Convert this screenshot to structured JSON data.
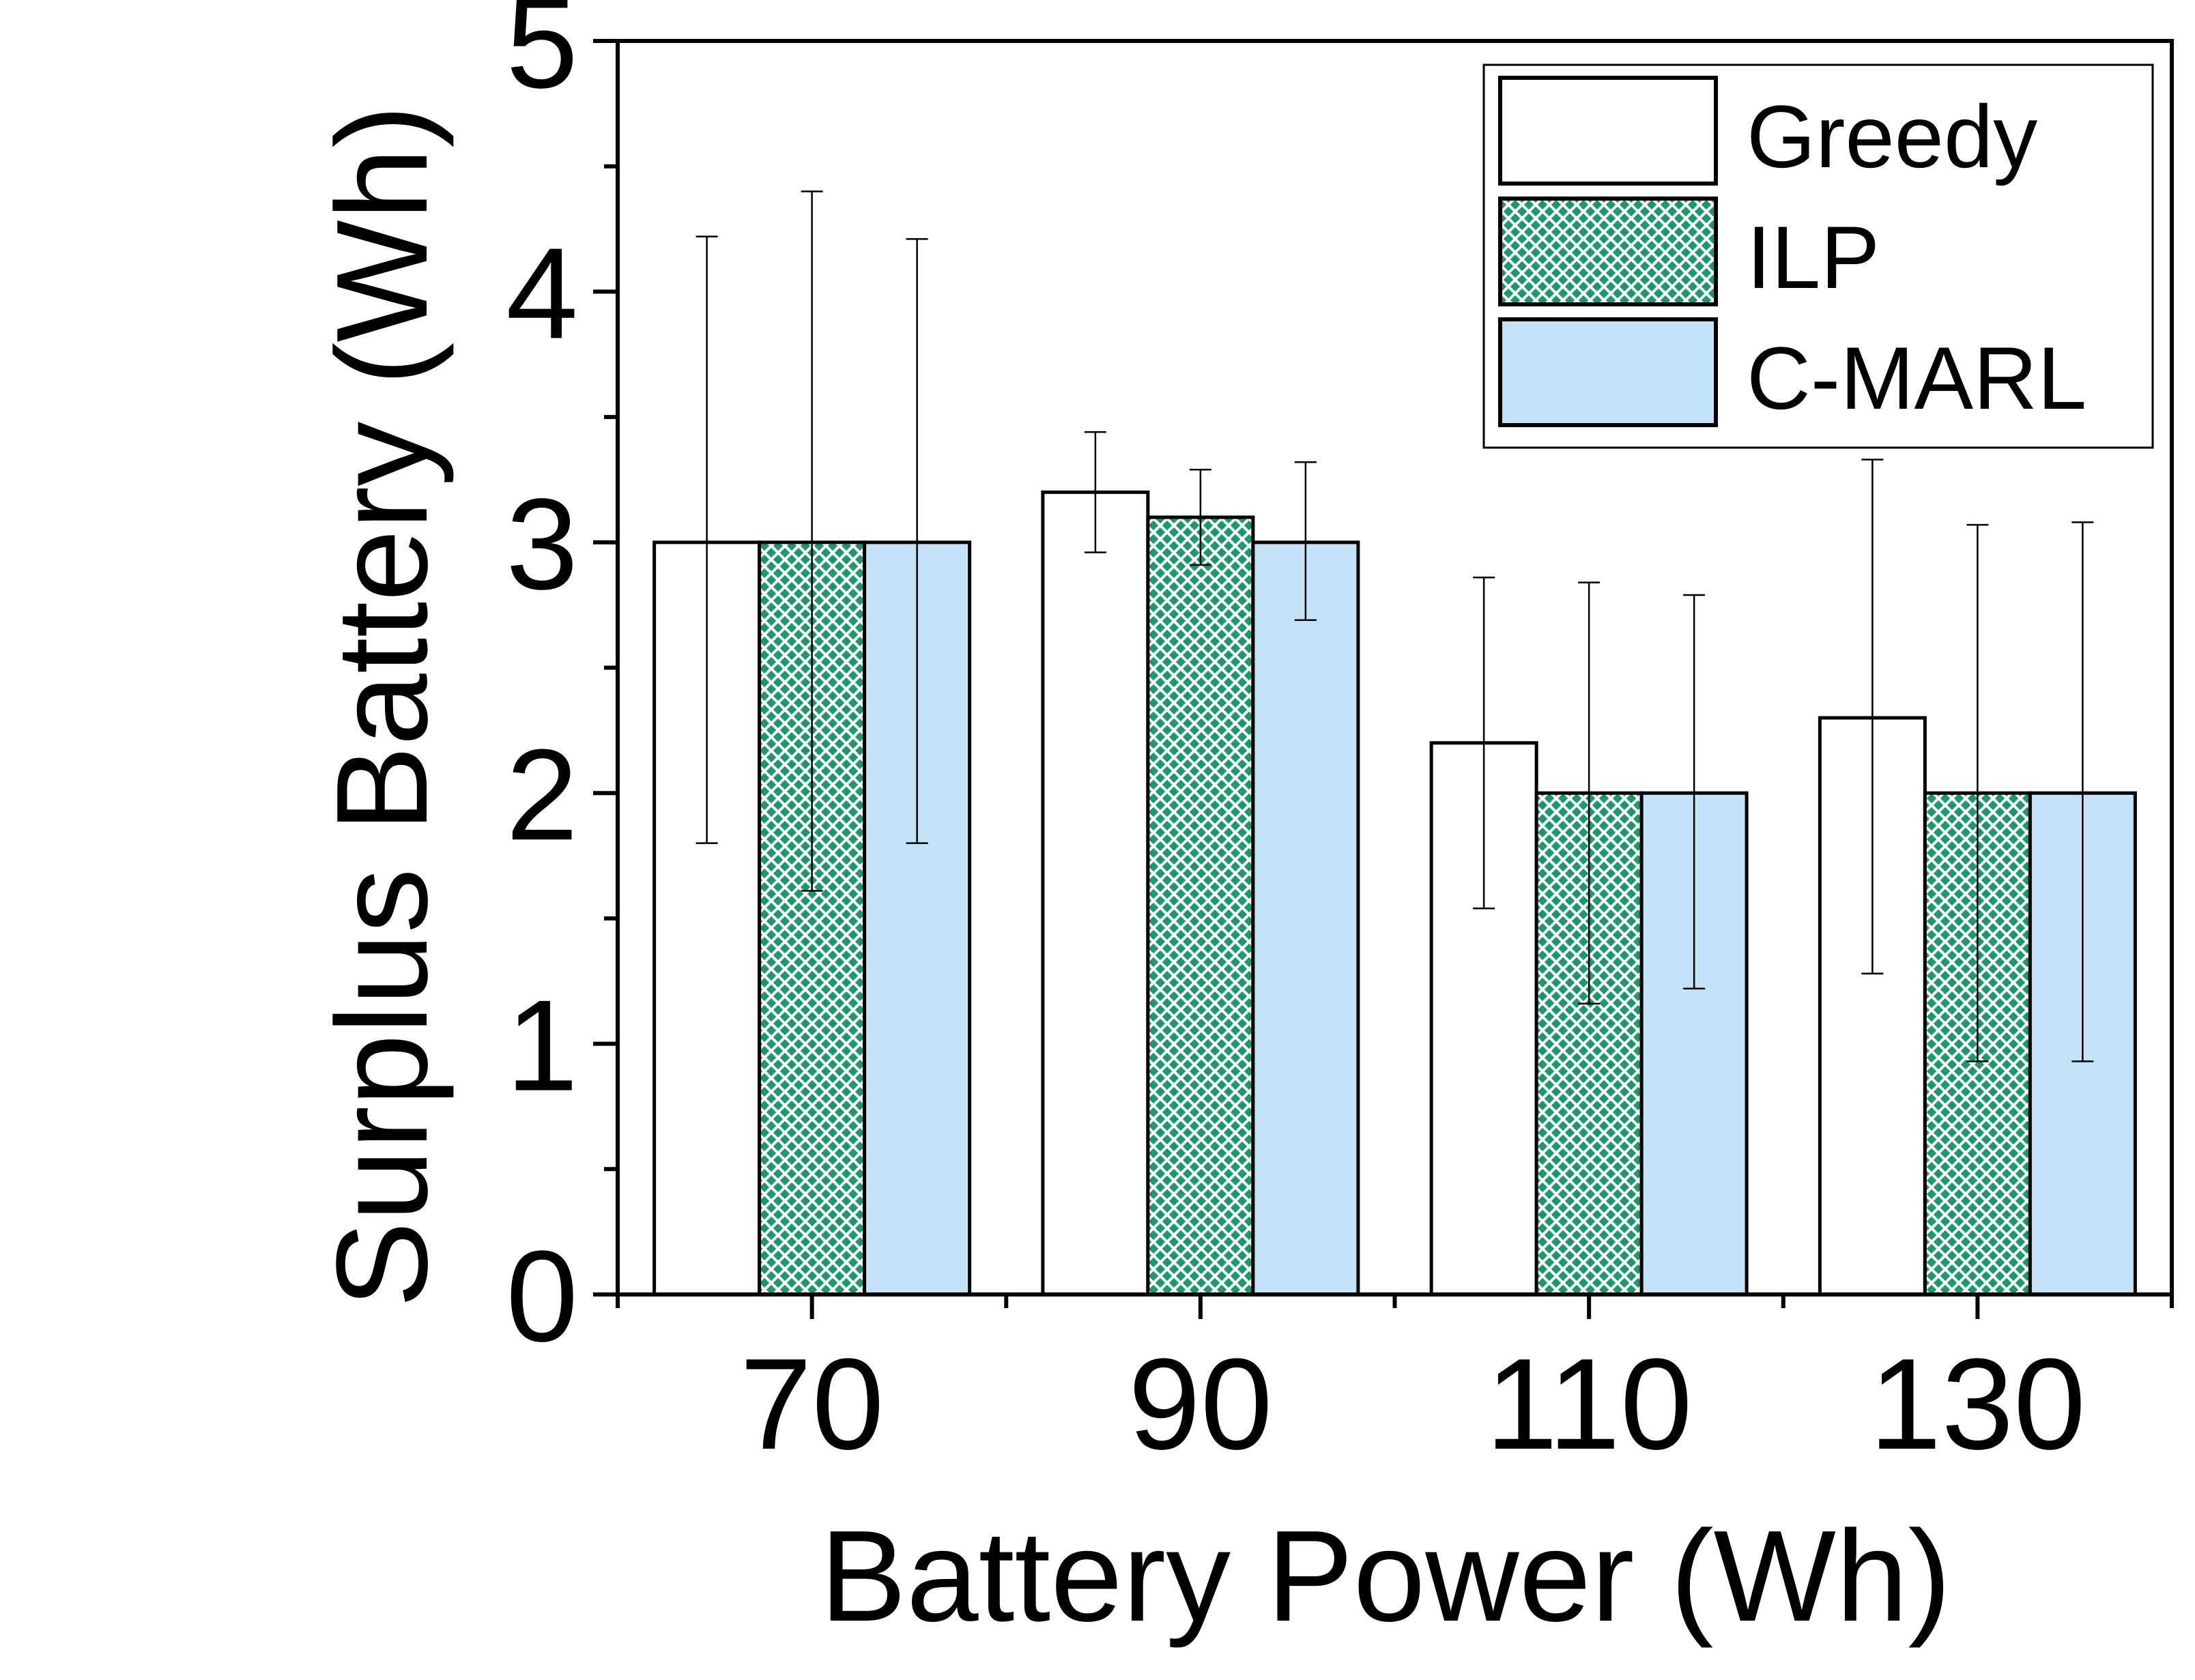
{
  "chart_data": {
    "type": "bar",
    "title": "",
    "xlabel": "Battery Power (Wh)",
    "ylabel": "Surplus Battery (Wh)",
    "categories": [
      "70",
      "90",
      "110",
      "130"
    ],
    "ylim": [
      0,
      5
    ],
    "yticks": [
      "0",
      "1",
      "2",
      "3",
      "4",
      "5"
    ],
    "grid": false,
    "legend_position": "top-right",
    "series": [
      {
        "name": "Greedy",
        "fill": "#ffffff",
        "pattern": "none",
        "values": [
          3.0,
          3.2,
          2.2,
          2.3
        ],
        "error_low": [
          1.8,
          2.96,
          1.54,
          1.28
        ],
        "error_high": [
          4.22,
          3.44,
          2.86,
          3.33
        ]
      },
      {
        "name": "ILP",
        "fill": "#1a9a6c",
        "pattern": "crosshatch",
        "values": [
          3.0,
          3.1,
          2.0,
          2.0
        ],
        "error_low": [
          1.61,
          2.91,
          1.16,
          0.93
        ],
        "error_high": [
          4.4,
          3.29,
          2.84,
          3.07
        ]
      },
      {
        "name": "C-MARL",
        "fill": "#c5e3f8",
        "pattern": "none",
        "values": [
          3.0,
          3.0,
          2.0,
          2.0
        ],
        "error_low": [
          1.8,
          2.69,
          1.22,
          0.93
        ],
        "error_high": [
          4.21,
          3.32,
          2.79,
          3.08
        ]
      }
    ]
  }
}
